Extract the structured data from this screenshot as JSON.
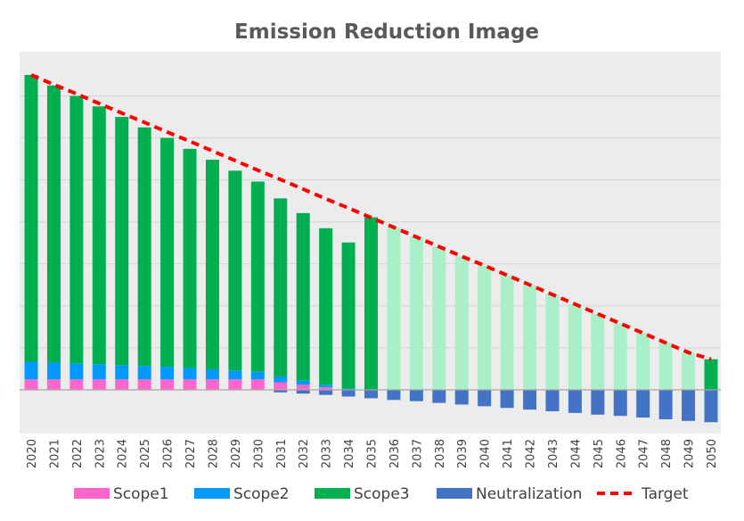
{
  "chart_data": {
    "type": "bar",
    "title": "Emission Reduction Image",
    "xlabel": "",
    "ylabel": "",
    "stacked": true,
    "grid": true,
    "legend_position": "bottom",
    "ylim": [
      -100,
      750
    ],
    "categories": [
      "2020",
      "2021",
      "2022",
      "2023",
      "2024",
      "2025",
      "2026",
      "2027",
      "2028",
      "2029",
      "2030",
      "2031",
      "2032",
      "2033",
      "2034",
      "2035",
      "2036",
      "2037",
      "2038",
      "2039",
      "2040",
      "2041",
      "2042",
      "2043",
      "2044",
      "2045",
      "2046",
      "2047",
      "2048",
      "2049",
      "2050"
    ],
    "series": [
      {
        "name": "Scope1",
        "color": "#ff66cc",
        "values": [
          25,
          25,
          25,
          25,
          25,
          25,
          25,
          25,
          25,
          25,
          25,
          18,
          12,
          6,
          0,
          0,
          0,
          0,
          0,
          0,
          0,
          0,
          0,
          0,
          0,
          0,
          0,
          0,
          0,
          0,
          0
        ]
      },
      {
        "name": "Scope2",
        "color": "#0099ff",
        "values": [
          42,
          40,
          38,
          36,
          34,
          32,
          30,
          27,
          24,
          21,
          18,
          14,
          10,
          6,
          3,
          0,
          0,
          0,
          0,
          0,
          0,
          0,
          0,
          0,
          0,
          0,
          0,
          0,
          0,
          0,
          0
        ]
      },
      {
        "name": "Scope3",
        "color": "#00b050",
        "values": [
          683,
          660,
          637,
          614,
          591,
          568,
          545,
          522,
          499,
          476,
          453,
          424,
          399,
          373,
          348,
          411,
          0,
          0,
          0,
          0,
          0,
          0,
          0,
          0,
          0,
          0,
          0,
          0,
          0,
          0,
          73
        ]
      },
      {
        "name": "Scope3 (projected)",
        "color": "#a9f0c8",
        "legend": false,
        "values": [
          0,
          0,
          0,
          0,
          0,
          0,
          0,
          0,
          0,
          0,
          0,
          0,
          0,
          0,
          0,
          0,
          387,
          364,
          341,
          318,
          296,
          273,
          250,
          227,
          204,
          181,
          158,
          135,
          112,
          89,
          0
        ]
      },
      {
        "name": "Neutralization",
        "color": "#4472c4",
        "values": [
          0,
          0,
          0,
          0,
          0,
          0,
          0,
          0,
          0,
          0,
          0,
          -6,
          -9,
          -12,
          -16,
          -20,
          -24,
          -27,
          -31,
          -35,
          -39,
          -43,
          -47,
          -51,
          -55,
          -59,
          -62,
          -66,
          -70,
          -74,
          -77
        ]
      }
    ],
    "target": {
      "name": "Target",
      "color": "#ff0000",
      "values": [
        750,
        727,
        705,
        682,
        659,
        637,
        614,
        592,
        569,
        546,
        523,
        501,
        478,
        455,
        433,
        410,
        387,
        364,
        341,
        318,
        296,
        273,
        250,
        227,
        204,
        181,
        158,
        135,
        112,
        89,
        73
      ]
    }
  }
}
